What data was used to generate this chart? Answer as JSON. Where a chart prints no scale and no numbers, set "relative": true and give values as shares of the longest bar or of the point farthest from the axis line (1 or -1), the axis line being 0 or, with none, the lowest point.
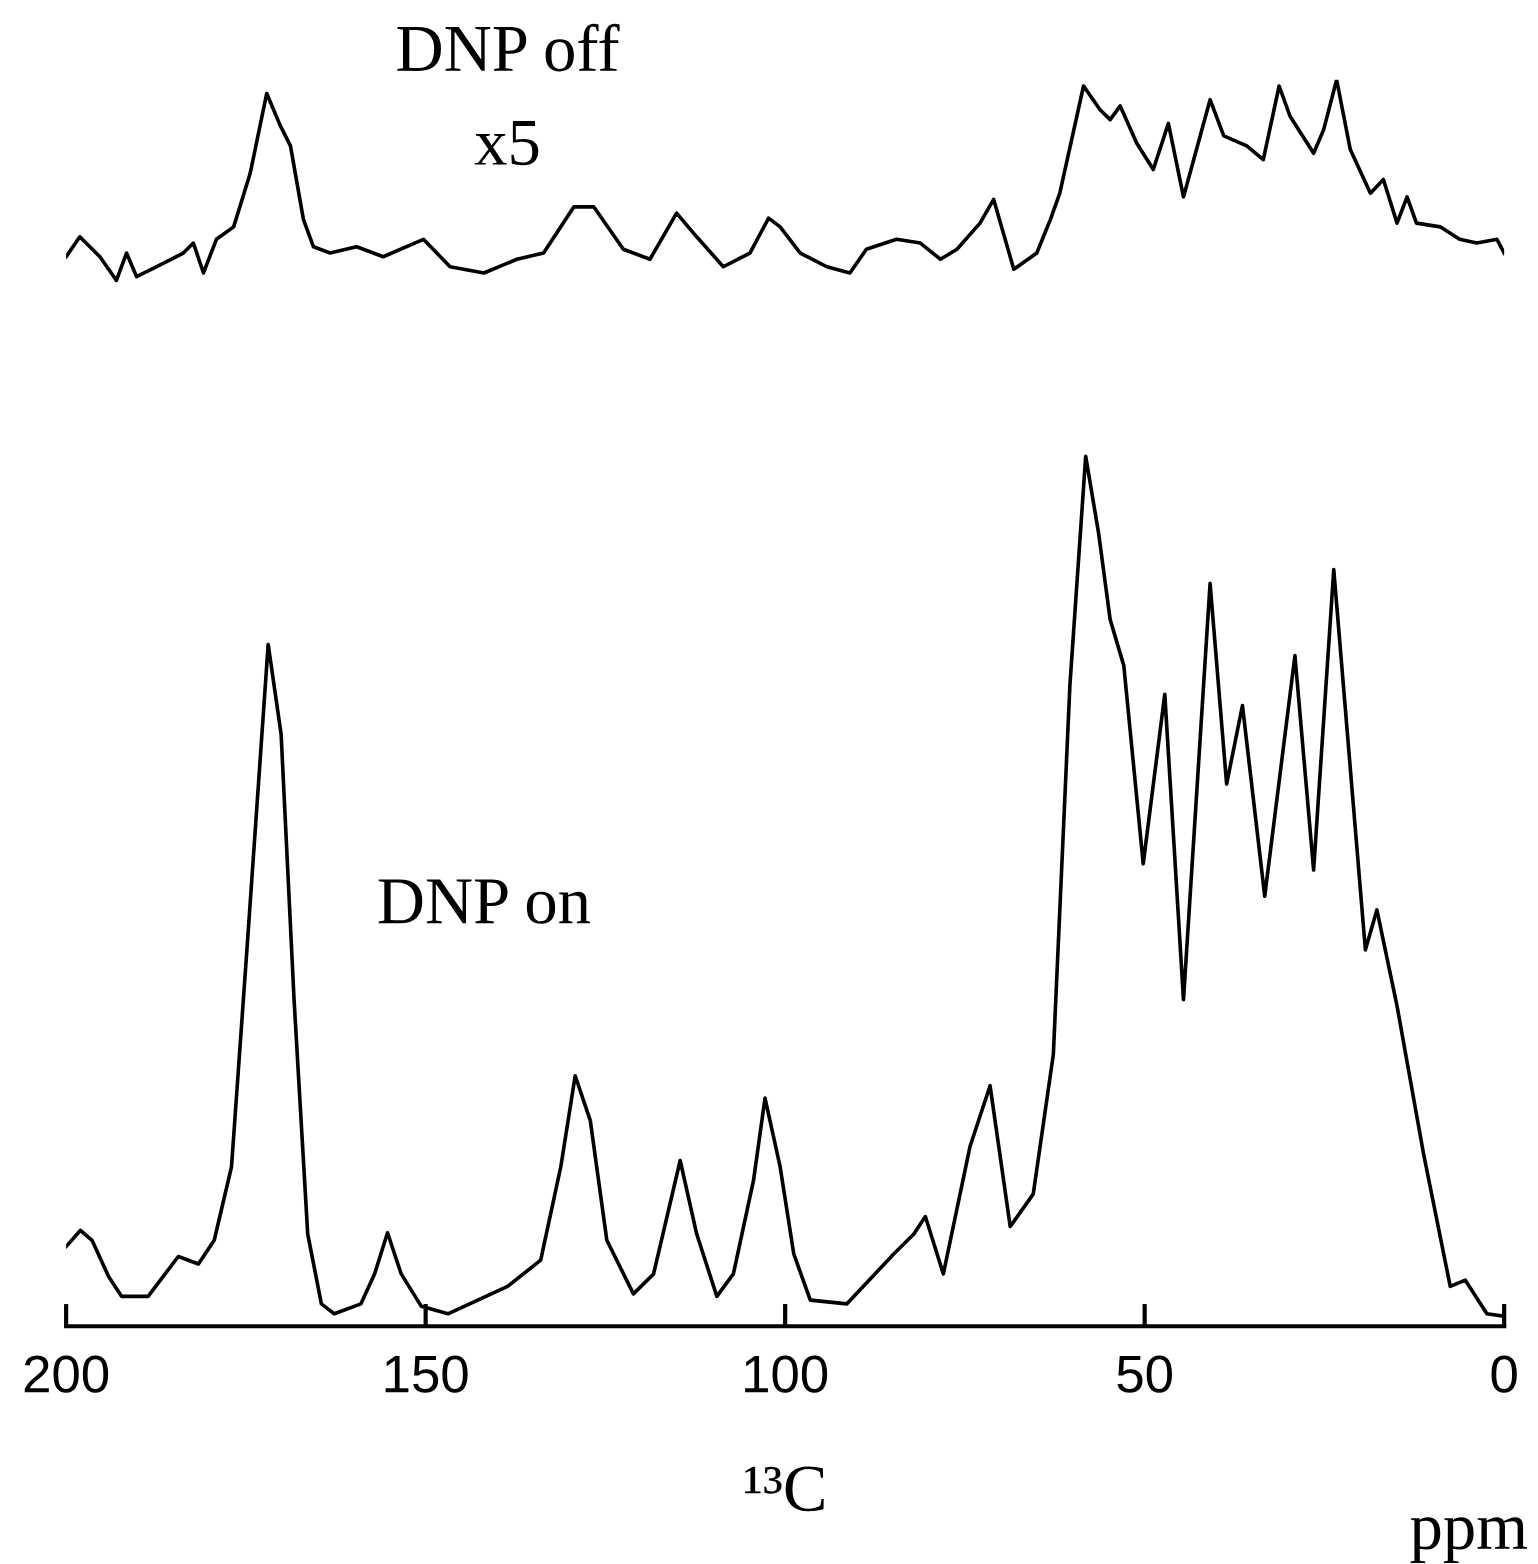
{
  "chart_data": {
    "type": "line",
    "relative": true,
    "xlabel": "¹³C",
    "annotations": [
      "DNP off",
      "x5",
      "DNP on",
      "ppm"
    ],
    "xlim": [
      200,
      0
    ],
    "xticks": [
      200,
      150,
      100,
      50,
      0
    ],
    "tick_labels": "x",
    "grid": false,
    "legend": false,
    "marker": "none",
    "line_style": "solid",
    "series": [
      {
        "color": "#000000",
        "x": [
          200,
          198.1,
          196.7,
          195.3,
          193.0,
          191.6,
          190.2,
          187.4,
          183.7,
          182.3,
          180.9,
          179.1,
          176.7,
          174.4,
          172.1,
          170.2,
          168.8,
          167.0,
          165.6,
          163.3,
          159.6,
          155.9,
          150.3,
          146.6,
          141.9,
          137.3,
          133.6,
          129.4,
          126.6,
          122.5,
          118.8,
          115.1,
          112.3,
          108.6,
          104.9,
          102.3,
          100.7,
          97.9,
          94.2,
          91.0,
          88.7,
          84.5,
          81.2,
          78.4,
          76.1,
          72.9,
          71.0,
          68.2,
          65.0,
          63.1,
          61.8,
          58.5,
          56.2,
          54.8,
          53.4,
          51.1,
          48.8,
          46.7,
          44.6,
          40.9,
          39.0,
          35.8,
          33.5,
          31.3,
          29.8,
          26.5,
          25.1,
          23.3,
          21.4,
          18.6,
          16.8,
          14.9,
          13.5,
          12.2,
          8.9,
          6.2,
          3.8,
          1.0,
          0
        ],
        "values": [
          0.858,
          0.874,
          0.866,
          0.858,
          0.839,
          0.861,
          0.842,
          0.85,
          0.861,
          0.869,
          0.845,
          0.872,
          0.882,
          0.925,
          0.989,
          0.963,
          0.947,
          0.888,
          0.866,
          0.861,
          0.866,
          0.858,
          0.872,
          0.85,
          0.845,
          0.856,
          0.861,
          0.898,
          0.898,
          0.864,
          0.856,
          0.893,
          0.874,
          0.85,
          0.861,
          0.889,
          0.882,
          0.861,
          0.85,
          0.845,
          0.864,
          0.872,
          0.869,
          0.856,
          0.864,
          0.885,
          0.904,
          0.848,
          0.861,
          0.888,
          0.909,
          0.995,
          0.976,
          0.968,
          0.979,
          0.949,
          0.928,
          0.965,
          0.906,
          0.984,
          0.955,
          0.947,
          0.936,
          0.995,
          0.971,
          0.941,
          0.96,
          1.0,
          0.944,
          0.909,
          0.92,
          0.885,
          0.906,
          0.885,
          0.882,
          0.872,
          0.869,
          0.872,
          0.861
        ]
      },
      {
        "color": "#000000",
        "x": [
          200,
          198,
          196.4,
          194.1,
          192.3,
          188.6,
          184.4,
          181.6,
          179.4,
          177,
          174.7,
          171.9,
          170.1,
          168.3,
          166.4,
          164.5,
          162.7,
          159,
          157.1,
          155.3,
          153.4,
          150.6,
          146.9,
          138.6,
          134,
          131.2,
          129.2,
          127.1,
          124.8,
          121.1,
          118.3,
          114.6,
          112.3,
          109.5,
          107.2,
          104.4,
          102.8,
          100.7,
          98.8,
          96.5,
          91.4,
          84.9,
          82.1,
          80.5,
          78.0,
          74.3,
          71.5,
          68.7,
          65.5,
          62.7,
          60.4,
          58.2,
          56.4,
          54.8,
          52.9,
          50.2,
          47.2,
          44.6,
          40.9,
          38.6,
          36.4,
          33.3,
          29.1,
          26.5,
          23.7,
          19.3,
          17.7,
          14.9,
          11.2,
          7.5,
          5.4,
          2.4,
          0
        ],
        "values": [
          0.064,
          0.077,
          0.069,
          0.04,
          0.024,
          0.024,
          0.056,
          0.05,
          0.069,
          0.128,
          0.315,
          0.547,
          0.475,
          0.262,
          0.074,
          0.018,
          0.01,
          0.018,
          0.042,
          0.075,
          0.042,
          0.016,
          0.01,
          0.032,
          0.053,
          0.128,
          0.201,
          0.165,
          0.069,
          0.026,
          0.042,
          0.133,
          0.074,
          0.024,
          0.042,
          0.117,
          0.183,
          0.128,
          0.058,
          0.021,
          0.018,
          0.058,
          0.074,
          0.088,
          0.042,
          0.144,
          0.193,
          0.08,
          0.106,
          0.218,
          0.514,
          0.698,
          0.636,
          0.567,
          0.53,
          0.371,
          0.507,
          0.262,
          0.596,
          0.435,
          0.498,
          0.345,
          0.538,
          0.366,
          0.607,
          0.302,
          0.334,
          0.257,
          0.138,
          0.032,
          0.037,
          0.01,
          0.008
        ]
      }
    ]
  }
}
